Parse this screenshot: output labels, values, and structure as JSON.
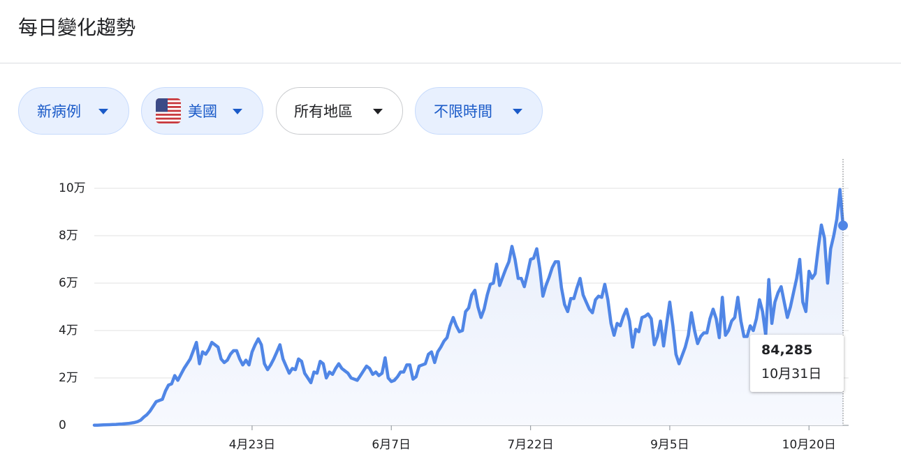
{
  "header": {
    "title": "每日變化趨勢"
  },
  "filters": [
    "新病例",
    "美國",
    "所有地區",
    "不限時間"
  ],
  "chart_data": {
    "type": "line",
    "color": "#5086e6",
    "grid": true,
    "ylim": [
      0,
      110000
    ],
    "yticks": [
      0,
      {
        "value": 20000,
        "label": "2万"
      },
      {
        "value": 40000,
        "label": "4万"
      },
      {
        "value": 60000,
        "label": "6万"
      },
      {
        "value": 80000,
        "label": "8万"
      },
      {
        "value": 100000,
        "label": "10万"
      }
    ],
    "categories": [
      null,
      null,
      null,
      null,
      null,
      null,
      null,
      null,
      null,
      null,
      null,
      null,
      null,
      null,
      null,
      null,
      null,
      null,
      null,
      null,
      null,
      null,
      null,
      null,
      null,
      null,
      null,
      null,
      null,
      null,
      null,
      null,
      null,
      null,
      null,
      null,
      null,
      null,
      null,
      null,
      null,
      null,
      null,
      null,
      null,
      null,
      null,
      null,
      null,
      null,
      null,
      "4月23日",
      null,
      null,
      null,
      null,
      null,
      null,
      null,
      null,
      null,
      null,
      null,
      null,
      null,
      null,
      null,
      null,
      null,
      null,
      null,
      null,
      null,
      null,
      null,
      null,
      null,
      null,
      null,
      null,
      null,
      null,
      null,
      null,
      null,
      null,
      null,
      null,
      null,
      null,
      null,
      null,
      null,
      null,
      null,
      null,
      "6月7日",
      null,
      null,
      null,
      null,
      null,
      null,
      null,
      null,
      null,
      null,
      null,
      null,
      null,
      null,
      null,
      null,
      null,
      null,
      null,
      null,
      null,
      null,
      null,
      null,
      null,
      null,
      null,
      null,
      null,
      null,
      null,
      null,
      null,
      null,
      null,
      null,
      null,
      null,
      null,
      null,
      null,
      null,
      null,
      null,
      "7月22日",
      null,
      null,
      null,
      null,
      null,
      null,
      null,
      null,
      null,
      null,
      null,
      null,
      null,
      null,
      null,
      null,
      null,
      null,
      null,
      null,
      null,
      null,
      null,
      null,
      null,
      null,
      null,
      null,
      null,
      null,
      null,
      null,
      null,
      null,
      null,
      null,
      null,
      null,
      null,
      null,
      null,
      null,
      null,
      null,
      "9月5日",
      null,
      null,
      null,
      null,
      null,
      null,
      null,
      null,
      null,
      null,
      null,
      null,
      null,
      null,
      null,
      null,
      null,
      null,
      null,
      null,
      null,
      null,
      null,
      null,
      null,
      null,
      null,
      null,
      null,
      null,
      null,
      null,
      null,
      null,
      null,
      null,
      null,
      null,
      null,
      null,
      null,
      null,
      null,
      null,
      "10月20日",
      null,
      null,
      null,
      null,
      null,
      null,
      null,
      null,
      null,
      null,
      "10月31日"
    ],
    "values": [
      100,
      100,
      150,
      200,
      250,
      300,
      350,
      400,
      500,
      600,
      700,
      800,
      1000,
      1200,
      1600,
      2200,
      3500,
      4500,
      6000,
      8000,
      10000,
      10500,
      11000,
      14500,
      17000,
      17500,
      21000,
      19000,
      21500,
      24000,
      26000,
      28000,
      31500,
      35000,
      26000,
      31000,
      30000,
      32000,
      35000,
      34000,
      33000,
      28000,
      26500,
      27500,
      30000,
      31500,
      31500,
      28000,
      25500,
      27500,
      25500,
      31000,
      34000,
      36500,
      34000,
      26000,
      23500,
      25500,
      28000,
      31000,
      34000,
      28000,
      25000,
      22000,
      24000,
      23500,
      28000,
      27000,
      22000,
      20000,
      18000,
      22500,
      22000,
      27000,
      26000,
      20000,
      22500,
      21500,
      24000,
      26000,
      24000,
      23000,
      22000,
      20000,
      19500,
      19000,
      21000,
      23000,
      25000,
      24000,
      21500,
      22500,
      21000,
      22000,
      28500,
      20000,
      18500,
      19000,
      20500,
      22500,
      22500,
      25500,
      25500,
      19500,
      20500,
      25000,
      25500,
      26000,
      30000,
      31000,
      26500,
      31000,
      33000,
      35500,
      37000,
      42000,
      45500,
      42000,
      39500,
      40000,
      48000,
      49500,
      55000,
      57000,
      50000,
      45500,
      49000,
      55000,
      59500,
      60000,
      68000,
      59000,
      62500,
      66000,
      69000,
      75500,
      70000,
      62000,
      62000,
      58500,
      64000,
      70000,
      70500,
      74500,
      66000,
      54500,
      59000,
      62500,
      66500,
      69000,
      69000,
      58000,
      51000,
      48000,
      53500,
      53500,
      58000,
      62000,
      55000,
      52000,
      49000,
      47500,
      53000,
      54500,
      54000,
      59500,
      53000,
      43000,
      38000,
      43000,
      42000,
      46000,
      49000,
      44000,
      33000,
      40500,
      39500,
      45500,
      46000,
      47000,
      45000,
      34000,
      37500,
      44000,
      33500,
      43000,
      52000,
      42000,
      30000,
      26000,
      29500,
      33000,
      38000,
      47500,
      40000,
      34500,
      37500,
      39000,
      39000,
      45000,
      49000,
      45000,
      37000,
      54000,
      38000,
      40000,
      44000,
      45500,
      54000,
      44000,
      37500,
      37500,
      42000,
      40000,
      45000,
      53000,
      48000,
      38000,
      61500,
      43000,
      52000,
      56000,
      58500,
      52000,
      45500,
      50000,
      56000,
      62000,
      70000,
      52000,
      48000,
      65000,
      62000,
      64000,
      75000,
      84500,
      79000,
      60000,
      74500,
      80000,
      87000,
      99500,
      84285
    ],
    "value_labels": [
      null,
      null,
      null,
      null,
      null,
      null,
      null,
      null,
      null,
      null,
      null,
      null,
      null,
      null,
      null,
      null,
      null,
      null,
      null,
      null,
      null,
      null,
      null,
      null,
      null,
      null,
      null,
      null,
      null,
      null,
      null,
      null,
      null,
      null,
      null,
      null,
      null,
      null,
      null,
      null,
      null,
      null,
      null,
      null,
      null,
      null,
      null,
      null,
      null,
      null,
      null,
      null,
      null,
      null,
      null,
      null,
      null,
      null,
      null,
      null,
      null,
      null,
      null,
      null,
      null,
      null,
      null,
      null,
      null,
      null,
      null,
      null,
      null,
      null,
      null,
      null,
      null,
      null,
      null,
      null,
      null,
      null,
      null,
      null,
      null,
      null,
      null,
      null,
      null,
      null,
      null,
      null,
      null,
      null,
      null,
      null,
      null,
      null,
      null,
      null,
      null,
      null,
      null,
      null,
      null,
      null,
      null,
      null,
      null,
      null,
      null,
      null,
      null,
      null,
      null,
      null,
      null,
      null,
      null,
      null,
      null,
      null,
      null,
      null,
      null,
      null,
      null,
      null,
      null,
      null,
      null,
      null,
      null,
      null,
      null,
      null,
      null,
      null,
      null,
      null,
      null,
      null,
      null,
      null,
      null,
      null,
      null,
      null,
      null,
      null,
      null,
      null,
      null,
      null,
      null,
      null,
      null,
      null,
      null,
      null,
      null,
      null,
      null,
      null,
      null,
      null,
      null,
      null,
      null,
      null,
      null,
      null,
      null,
      null,
      null,
      null,
      null,
      null,
      null,
      null,
      null,
      null,
      null,
      null,
      null,
      null,
      null,
      null,
      null,
      null,
      null,
      null,
      null,
      null,
      null,
      null,
      null,
      null,
      null,
      null,
      null,
      null,
      null,
      null,
      null,
      null,
      null,
      null,
      null,
      null,
      null,
      null,
      null,
      null,
      null,
      null,
      null,
      null,
      null,
      null,
      null,
      null,
      null,
      null,
      null,
      null,
      null,
      null,
      null,
      null,
      null,
      null,
      null,
      null,
      null,
      null,
      null,
      null,
      null,
      null,
      null,
      null,
      "84,285"
    ]
  }
}
